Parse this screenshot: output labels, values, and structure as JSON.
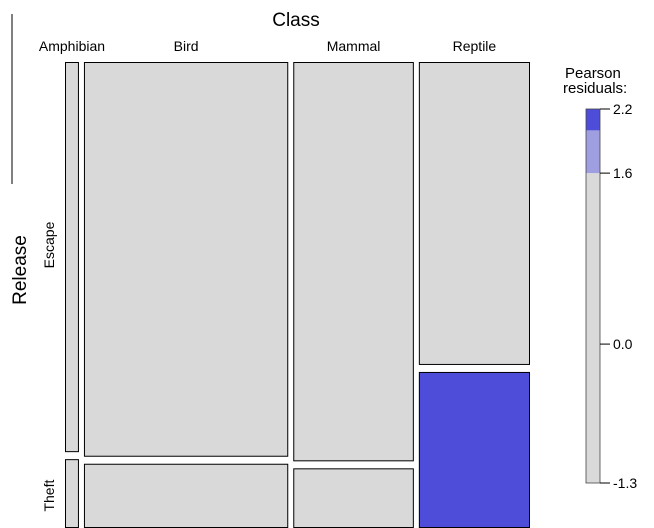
{
  "chart_data": {
    "type": "mosaic",
    "col_variable": "Class",
    "row_variable": "Release",
    "categories": [
      "Amphibian",
      "Bird",
      "Mammal",
      "Reptile"
    ],
    "row_categories": [
      "Escape",
      "Theft"
    ],
    "col_widths": [
      0.031,
      0.454,
      0.268,
      0.247
    ],
    "cells": [
      {
        "class": "Amphibian",
        "release": "Escape",
        "share": 0.85,
        "residual": 0.0
      },
      {
        "class": "Amphibian",
        "release": "Theft",
        "share": 0.15,
        "residual": 0.0
      },
      {
        "class": "Bird",
        "release": "Escape",
        "share": 0.86,
        "residual": 0.0
      },
      {
        "class": "Bird",
        "release": "Theft",
        "share": 0.14,
        "residual": 0.0
      },
      {
        "class": "Mammal",
        "release": "Escape",
        "share": 0.87,
        "residual": 0.0
      },
      {
        "class": "Mammal",
        "release": "Theft",
        "share": 0.13,
        "residual": 0.0
      },
      {
        "class": "Reptile",
        "release": "Escape",
        "share": 0.66,
        "residual": 0.0
      },
      {
        "class": "Reptile",
        "release": "Theft",
        "share": 0.34,
        "residual": 2.2
      }
    ],
    "legend": {
      "title_lines": [
        "Pearson",
        "residuals:"
      ],
      "range": [
        -1.3,
        2.2
      ],
      "ticks": [
        2.2,
        1.6,
        0.0,
        -1.3
      ],
      "tick_labels": [
        "2.2",
        "1.6",
        "0.0",
        "-1.3"
      ],
      "bands": [
        {
          "from": -1.3,
          "to": 1.6,
          "color": "#d9d9d9"
        },
        {
          "from": 1.6,
          "to": 2.0,
          "color": "#9e9ee0"
        },
        {
          "from": 2.0,
          "to": 2.2,
          "color": "#4d4dd9"
        }
      ]
    },
    "colors": {
      "neutral": "#d9d9d9",
      "moderate": "#9e9ee0",
      "strong": "#4d4dd9"
    }
  }
}
